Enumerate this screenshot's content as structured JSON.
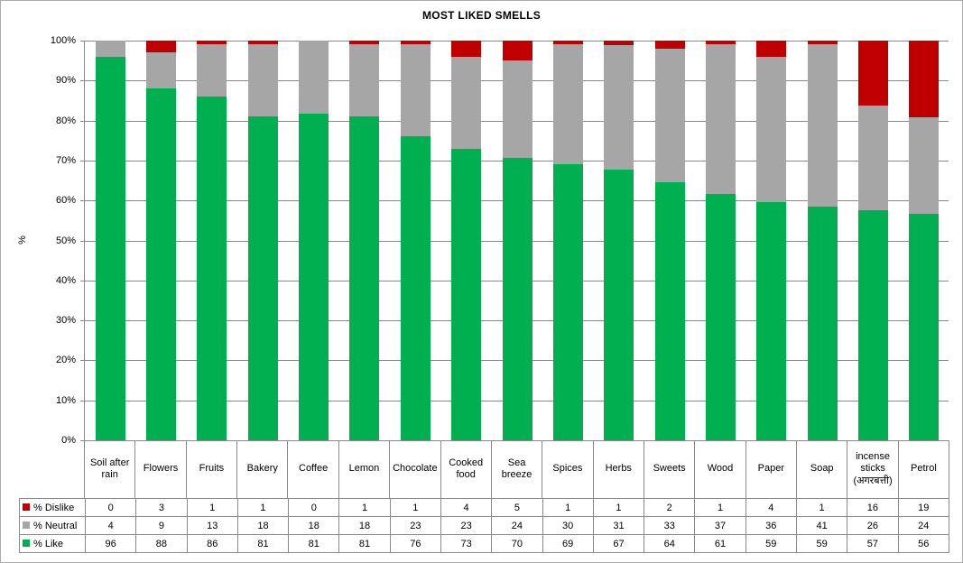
{
  "chart": {
    "y_ticks": [
      "100%",
      "90%",
      "80%",
      "70%",
      "60%",
      "50%",
      "40%",
      "30%",
      "20%",
      "10%",
      "0%"
    ],
    "grid_color": "#898989",
    "background": "#ffffff"
  },
  "chart_data": {
    "type": "bar",
    "stacked": true,
    "normalized_100_percent": true,
    "title": "MOST LIKED SMELLS",
    "xlabel": "",
    "ylabel": "%",
    "ylim": [
      0,
      100
    ],
    "grid": true,
    "legend_position": "data-table-left",
    "categories": [
      "Soil after rain",
      "Flowers",
      "Fruits",
      "Bakery",
      "Coffee",
      "Lemon",
      "Chocolate",
      "Cooked food",
      "Sea breeze",
      "Spices",
      "Herbs",
      "Sweets",
      "Wood",
      "Paper",
      "Soap",
      "incense sticks (अगरबत्ती)",
      "Petrol"
    ],
    "series": [
      {
        "name": "% Dislike",
        "color": "#C00000",
        "values": [
          0,
          3,
          1,
          1,
          0,
          1,
          1,
          4,
          5,
          1,
          1,
          2,
          1,
          4,
          1,
          16,
          19
        ]
      },
      {
        "name": "% Neutral",
        "color": "#A6A6A6",
        "values": [
          4,
          9,
          13,
          18,
          18,
          18,
          23,
          23,
          24,
          30,
          31,
          33,
          37,
          36,
          41,
          26,
          24
        ]
      },
      {
        "name": "% Like",
        "color": "#00B050",
        "values": [
          96,
          88,
          86,
          81,
          81,
          81,
          76,
          73,
          70,
          69,
          67,
          64,
          61,
          59,
          59,
          57,
          56
        ]
      }
    ]
  }
}
